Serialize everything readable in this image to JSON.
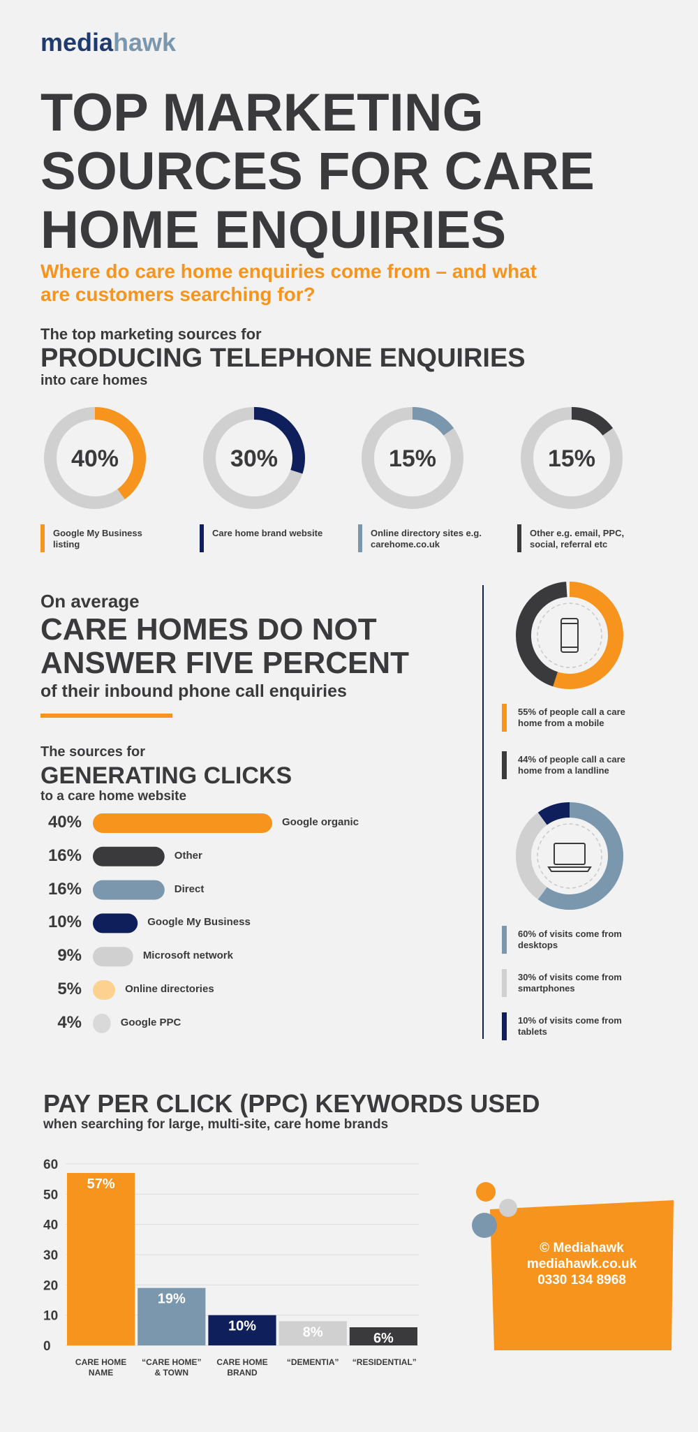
{
  "header": {
    "brand": [
      "media",
      "hawk"
    ],
    "title": "TOP MARKETING SOURCES FOR CARE HOME ENQUIRIES",
    "subtitle": "Where do care home enquiries come from – and what are customers searching for?"
  },
  "callout": {
    "intro": "On average",
    "title": "CARE HOMES DO NOT ANSWER FIVE PERCENT",
    "outro": "of their inbound phone call enquiries"
  },
  "chart_data": [
    {
      "type": "gauge",
      "intro": "The top marketing sources for",
      "title": "PRODUCING TELEPHONE ENQUIRIES",
      "outro": "into care homes",
      "categories": [
        "Google My Business listing",
        "Care home brand website",
        "Online directory sites e.g. carehome.co.uk",
        "Other e.g. email, PPC, social, referral etc"
      ],
      "values": [
        40,
        30,
        15,
        15
      ],
      "value_labels": [
        "40%",
        "30%",
        "15%",
        "15%"
      ],
      "colors": [
        "#f7941d",
        "#0f1f5c",
        "#7b97ae",
        "#3a3a3c"
      ]
    },
    {
      "type": "hbar",
      "intro": "The sources for",
      "title": "GENERATING CLICKS",
      "outro": "to a care home website",
      "categories": [
        "Google organic",
        "Other",
        "Direct",
        "Google My Business",
        "Microsoft network",
        "Online directories",
        "Google PPC"
      ],
      "values": [
        40,
        16,
        16,
        10,
        9,
        5,
        4
      ],
      "value_labels": [
        "40%",
        "16%",
        "16%",
        "10%",
        "9%",
        "5%",
        "4%"
      ],
      "colors": [
        "#f7941d",
        "#3a3a3c",
        "#7b97ae",
        "#0f1f5c",
        "#d0d0d0",
        "#fdd190",
        "#d9d9d9"
      ]
    },
    {
      "type": "donut",
      "categories": [
        "55% of people call a care home from a mobile",
        "44% of people call a care home from a landline"
      ],
      "values": [
        55,
        44
      ],
      "colors": [
        "#f7941d",
        "#3a3a3c"
      ]
    },
    {
      "type": "donut",
      "categories": [
        "60% of visits come from desktops",
        "30% of visits come from smartphones",
        "10% of visits come from tablets"
      ],
      "values": [
        60,
        30,
        10
      ],
      "colors": [
        "#7b97ae",
        "#d0d0d0",
        "#0f1f5c"
      ]
    },
    {
      "type": "bar",
      "title": "PAY PER CLICK (PPC) KEYWORDS USED",
      "subtitle": "when searching for large, multi-site, care home brands",
      "categories": [
        "CARE HOME NAME",
        "“CARE HOME” & TOWN",
        "CARE HOME BRAND",
        "“DEMENTIA”",
        "“RESIDENTIAL”"
      ],
      "values": [
        57,
        19,
        10,
        8,
        6
      ],
      "value_labels": [
        "57%",
        "19%",
        "10%",
        "8%",
        "6%"
      ],
      "colors": [
        "#f7941d",
        "#7b97ae",
        "#0f1f5c",
        "#d0d0d0",
        "#3a3a3c"
      ],
      "ylim": [
        0,
        60
      ],
      "yticks": [
        0,
        10,
        20,
        30,
        40,
        50,
        60
      ],
      "grid": true
    }
  ],
  "contact": [
    "© Mediahawk",
    "mediahawk.co.uk",
    "0330 134 8968"
  ]
}
